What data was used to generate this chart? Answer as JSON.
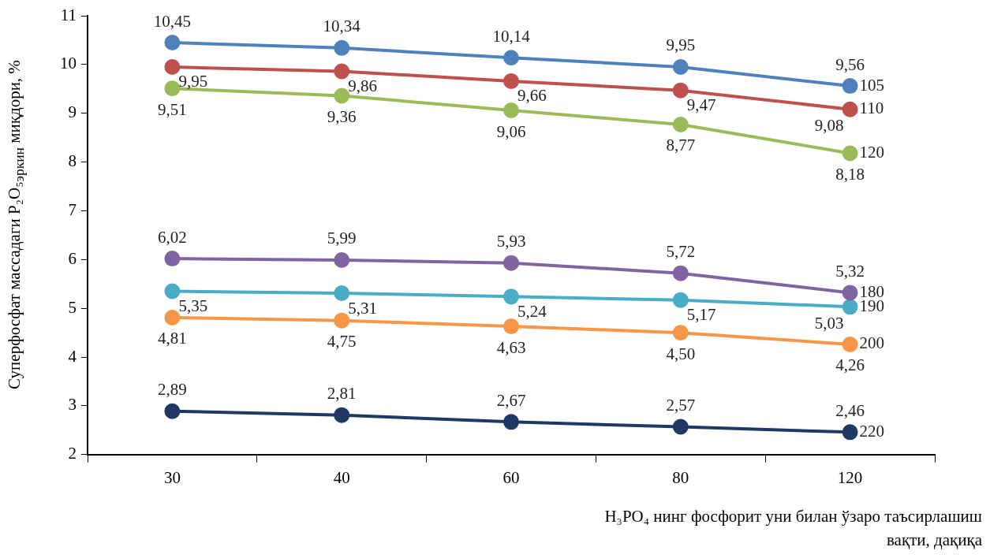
{
  "chart_data": {
    "type": "line",
    "xlabel": "H₃PO₄ нинг фосфорит уни билан ўзаро таъсирлашиш вақти, дақиқа",
    "ylabel": "Суперфосфат массадаги P₂O₅$_{эркин}$ миқдори, %",
    "categories": [
      "30",
      "40",
      "60",
      "80",
      "120"
    ],
    "ylim": [
      2,
      11
    ],
    "yticks": [
      2,
      3,
      4,
      5,
      6,
      7,
      8,
      9,
      10,
      11
    ],
    "legend": false,
    "marker": "circle",
    "line_style": "solid",
    "series": [
      {
        "name": "105",
        "color": "#4f81bd",
        "values": [
          10.45,
          10.34,
          10.14,
          9.95,
          9.56
        ],
        "value_labels": [
          "10,45",
          "10,34",
          "10,14",
          "9,95",
          "9,56"
        ]
      },
      {
        "name": "110",
        "color": "#c0504d",
        "values": [
          9.95,
          9.86,
          9.66,
          9.47,
          9.08
        ],
        "value_labels": [
          "9,95",
          "9,86",
          "9,66",
          "9,47",
          "9,08"
        ]
      },
      {
        "name": "120",
        "color": "#9bbb59",
        "values": [
          9.51,
          9.36,
          9.06,
          8.77,
          8.18
        ],
        "value_labels": [
          "9,51",
          "9,36",
          "9,06",
          "8,77",
          "8,18"
        ]
      },
      {
        "name": "180",
        "color": "#8064a2",
        "values": [
          6.02,
          5.99,
          5.93,
          5.72,
          5.32
        ],
        "value_labels": [
          "6,02",
          "5,99",
          "5,93",
          "5,72",
          "5,32"
        ]
      },
      {
        "name": "190",
        "color": "#4bacc6",
        "values": [
          5.35,
          5.31,
          5.24,
          5.17,
          5.03
        ],
        "value_labels": [
          "5,35",
          "5,31",
          "5,24",
          "5,17",
          "5,03"
        ]
      },
      {
        "name": "200",
        "color": "#f79646",
        "values": [
          4.81,
          4.75,
          4.63,
          4.5,
          4.26
        ],
        "value_labels": [
          "4,81",
          "4,75",
          "4,63",
          "4,50",
          "4,26"
        ]
      },
      {
        "name": "220",
        "color": "#1f3864",
        "values": [
          2.89,
          2.81,
          2.67,
          2.57,
          2.46
        ],
        "value_labels": [
          "2,89",
          "2,81",
          "2,67",
          "2,57",
          "2,46"
        ]
      }
    ]
  }
}
